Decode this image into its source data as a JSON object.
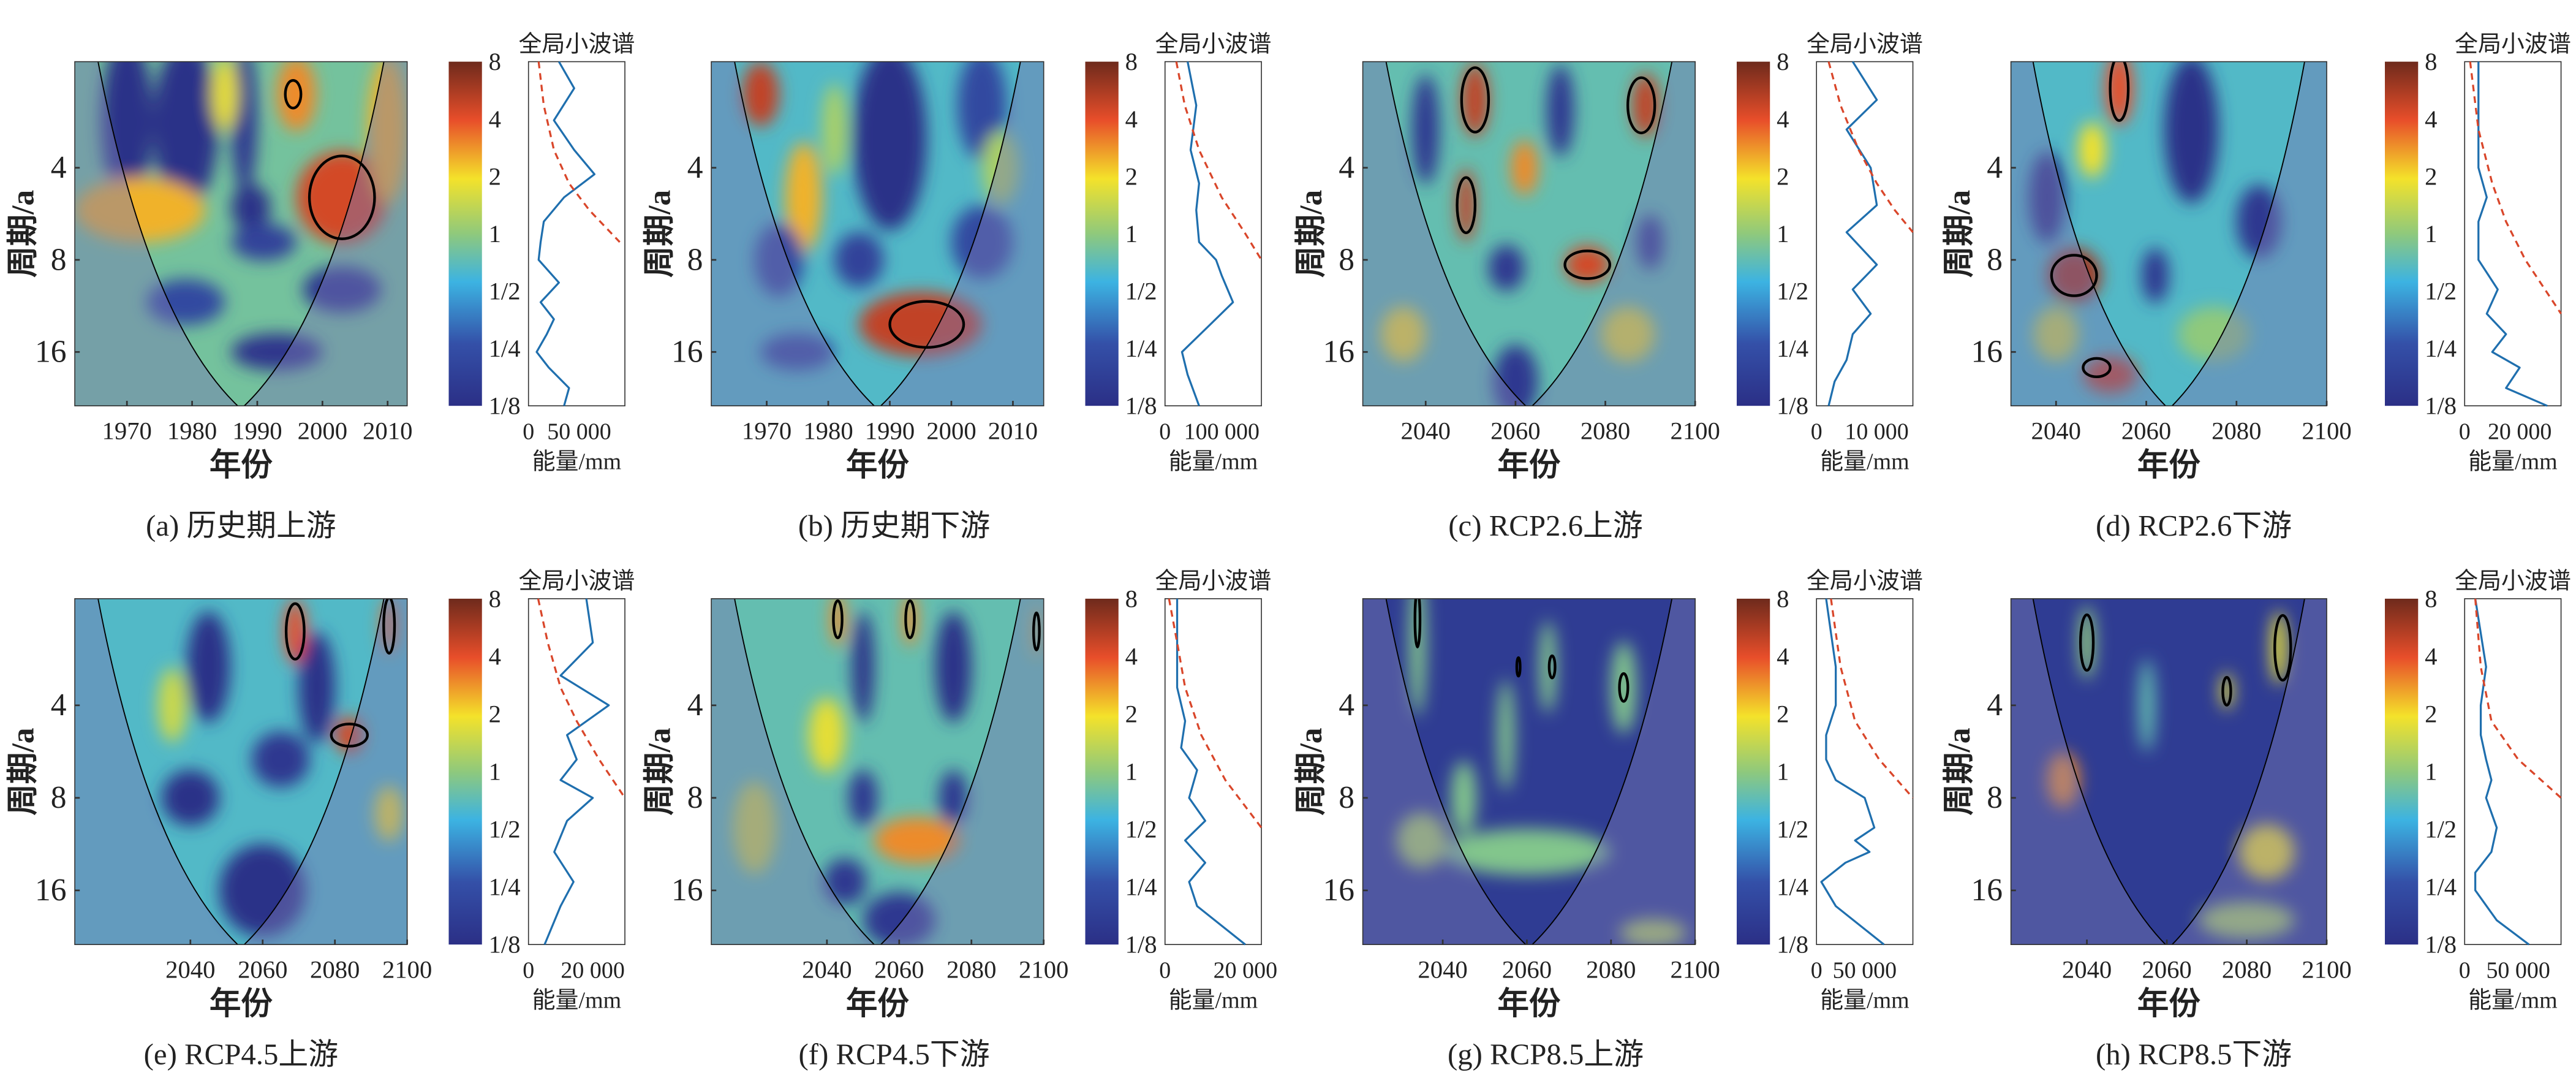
{
  "common": {
    "ylabel": "周期/a",
    "xlabel": "年份",
    "global_title": "全局小波谱",
    "energy_label": "能量/mm",
    "yticks": [
      4,
      8,
      16
    ],
    "ylim": [
      1.8,
      24
    ],
    "colorbar_ticks": [
      "8",
      "4",
      "2",
      "1",
      "1/2",
      "1/4",
      "1/8"
    ],
    "colorbar_values": [
      8,
      4,
      2,
      1,
      0.5,
      0.25,
      0.125
    ],
    "colors": {
      "contour": "#000000",
      "coi": "#000000",
      "global": "#1f6fae",
      "significance": "#d9462a"
    }
  },
  "chart_data": [
    {
      "id": "a",
      "type": "heatmap",
      "caption": "(a) 历史期上游",
      "xlim": [
        1962,
        2013
      ],
      "xticks": [
        1970,
        1980,
        1990,
        2000,
        2010
      ],
      "base_power": 0.8,
      "spots": [
        [
          1970,
          2.8,
          0.13,
          4,
          0.9
        ],
        [
          1979,
          2.9,
          0.13,
          5,
          0.9
        ],
        [
          1988,
          2.8,
          0.15,
          2,
          0.8
        ],
        [
          1972,
          5.5,
          2.5,
          10,
          0.35
        ],
        [
          2003,
          5,
          4.5,
          7,
          0.5
        ],
        [
          1996,
          2.3,
          3,
          3,
          0.4
        ],
        [
          2010,
          3,
          2.5,
          3,
          0.8
        ],
        [
          1989,
          5.4,
          0.13,
          3,
          0.25
        ],
        [
          1991,
          7,
          0.18,
          5,
          0.2
        ],
        [
          2003,
          10,
          0.15,
          6,
          0.25
        ],
        [
          1979,
          11,
          0.2,
          6,
          0.25
        ],
        [
          1993,
          16,
          0.14,
          7,
          0.2
        ],
        [
          1985,
          2.3,
          1.8,
          2,
          0.4
        ]
      ],
      "contours": [
        [
          1995.5,
          2.3,
          1.2,
          0.15
        ],
        [
          2003,
          5,
          5,
          0.45
        ]
      ],
      "global": {
        "periods": [
          1.8,
          2.2,
          2.8,
          3.5,
          4.2,
          5,
          6,
          7,
          8,
          9.5,
          11,
          12.5,
          14,
          16,
          18,
          21,
          24
        ],
        "energy": [
          30000,
          45000,
          25000,
          45000,
          65000,
          35000,
          15000,
          12000,
          10000,
          30000,
          12000,
          25000,
          18000,
          8000,
          20000,
          40000,
          35000
        ],
        "sig_periods": [
          1.8,
          2.5,
          3.5,
          4.5,
          5.5,
          7
        ],
        "sig_energy": [
          10000,
          15000,
          25000,
          40000,
          60000,
          90000
        ],
        "xmax": 95000,
        "xticks": [
          0,
          50000
        ],
        "xtick_labels": [
          "0",
          "50 000"
        ]
      }
    },
    {
      "id": "b",
      "type": "heatmap",
      "caption": "(b) 历史期下游",
      "xlim": [
        1961,
        2015
      ],
      "xticks": [
        1970,
        1980,
        1990,
        2000,
        2010
      ],
      "base_power": 0.6,
      "spots": [
        [
          1969,
          2.3,
          5,
          3,
          0.35
        ],
        [
          1990,
          3.2,
          0.13,
          6,
          1
        ],
        [
          1976,
          5,
          2.5,
          3,
          0.6
        ],
        [
          1981,
          3,
          1.2,
          2,
          0.5
        ],
        [
          1995,
          13,
          5,
          10,
          0.35
        ],
        [
          2005,
          2.5,
          0.2,
          4,
          0.6
        ],
        [
          1972,
          8,
          0.2,
          4,
          0.4
        ],
        [
          1985,
          8,
          0.18,
          4,
          0.3
        ],
        [
          2005,
          7,
          0.2,
          5,
          0.4
        ],
        [
          1975,
          16,
          0.2,
          6,
          0.2
        ],
        [
          2008,
          4,
          1.2,
          3,
          0.4
        ]
      ],
      "contours": [
        [
          1996,
          13,
          6,
          0.25
        ]
      ],
      "global": {
        "periods": [
          1.8,
          2.5,
          3.5,
          4.5,
          5.5,
          7,
          8,
          9,
          11,
          13,
          16,
          19,
          24
        ],
        "energy": [
          40000,
          55000,
          45000,
          60000,
          55000,
          60000,
          90000,
          100000,
          120000,
          80000,
          30000,
          40000,
          60000
        ],
        "sig_periods": [
          1.8,
          2.5,
          3.5,
          5,
          6.5,
          8
        ],
        "sig_energy": [
          20000,
          35000,
          60000,
          100000,
          140000,
          170000
        ],
        "xmax": 170000,
        "xticks": [
          0,
          100000
        ],
        "xtick_labels": [
          "0",
          "100 000"
        ]
      }
    },
    {
      "id": "c",
      "type": "heatmap",
      "caption": "(c) RCP2.6上游",
      "xlim": [
        2026,
        2100
      ],
      "xticks": [
        2040,
        2060,
        2080,
        2100
      ],
      "base_power": 0.7,
      "spots": [
        [
          2051,
          2.4,
          5,
          3,
          0.4
        ],
        [
          2089,
          2.5,
          5,
          3,
          0.35
        ],
        [
          2049,
          5.3,
          5,
          2,
          0.4
        ],
        [
          2076,
          8.3,
          4.5,
          5,
          0.2
        ],
        [
          2062,
          4,
          3,
          3,
          0.3
        ],
        [
          2040,
          3,
          0.15,
          3,
          0.6
        ],
        [
          2070,
          2.6,
          0.15,
          3,
          0.5
        ],
        [
          2058,
          8.5,
          0.15,
          4,
          0.25
        ],
        [
          2090,
          7,
          0.15,
          3,
          0.3
        ],
        [
          2035,
          14,
          2,
          5,
          0.3
        ],
        [
          2085,
          14,
          1.8,
          6,
          0.3
        ],
        [
          2060,
          20,
          0.15,
          5,
          0.4
        ]
      ],
      "contours": [
        [
          2051,
          2.4,
          3,
          0.35
        ],
        [
          2088,
          2.5,
          3,
          0.3
        ],
        [
          2049,
          5.3,
          2,
          0.3
        ],
        [
          2076,
          8.3,
          5,
          0.15
        ]
      ],
      "global": {
        "periods": [
          1.8,
          2.4,
          3,
          4,
          5.3,
          6.5,
          8.3,
          10,
          12,
          14,
          17,
          20,
          24
        ],
        "energy": [
          6000,
          10000,
          5000,
          9000,
          10000,
          5000,
          10000,
          6000,
          9000,
          6000,
          5000,
          3000,
          2000
        ],
        "sig_periods": [
          1.8,
          2.5,
          3.5,
          4.5,
          5.5,
          6.5
        ],
        "sig_energy": [
          2000,
          4000,
          7000,
          10000,
          13000,
          16000
        ],
        "xmax": 16000,
        "xticks": [
          0,
          10000
        ],
        "xtick_labels": [
          "0",
          "10 000"
        ]
      }
    },
    {
      "id": "d",
      "type": "heatmap",
      "caption": "(d) RCP2.6下游",
      "xlim": [
        2030,
        2100
      ],
      "xticks": [
        2040,
        2060,
        2080,
        2100
      ],
      "base_power": 0.6,
      "spots": [
        [
          2044,
          9,
          6,
          6,
          0.3
        ],
        [
          2054,
          2.2,
          4,
          3,
          0.4
        ],
        [
          2052,
          19,
          5,
          6,
          0.2
        ],
        [
          2038,
          5,
          0.13,
          4,
          0.5
        ],
        [
          2070,
          3,
          0.13,
          6,
          0.8
        ],
        [
          2062,
          9,
          0.15,
          3,
          0.3
        ],
        [
          2085,
          6,
          0.15,
          5,
          0.4
        ],
        [
          2040,
          14,
          1.5,
          5,
          0.3
        ],
        [
          2075,
          14,
          1,
          8,
          0.3
        ],
        [
          2048,
          3.5,
          2,
          3,
          0.3
        ]
      ],
      "contours": [
        [
          2044,
          9,
          5,
          0.22
        ],
        [
          2054,
          2.2,
          2,
          0.35
        ],
        [
          2049,
          18,
          3,
          0.1
        ]
      ],
      "global": {
        "periods": [
          1.8,
          3,
          4,
          5,
          6,
          8,
          10,
          12,
          14,
          16,
          18,
          21,
          24
        ],
        "energy": [
          5000,
          5000,
          5000,
          8000,
          5000,
          5000,
          12000,
          8000,
          15000,
          10000,
          20000,
          15000,
          30000
        ],
        "sig_periods": [
          1.8,
          3,
          4.5,
          6,
          8,
          12
        ],
        "sig_energy": [
          2000,
          5000,
          10000,
          15000,
          22000,
          35000
        ],
        "xmax": 35000,
        "xticks": [
          0,
          20000
        ],
        "xtick_labels": [
          "0",
          "20 000"
        ]
      }
    },
    {
      "id": "e",
      "type": "heatmap",
      "caption": "(e) RCP4.5上游",
      "xlim": [
        2008,
        2100
      ],
      "xticks": [
        2040,
        2060,
        2080,
        2100
      ],
      "base_power": 0.6,
      "spots": [
        [
          2069,
          2.3,
          4,
          3,
          0.35
        ],
        [
          2084,
          5,
          4.5,
          4,
          0.2
        ],
        [
          2095,
          2.2,
          3.5,
          2,
          0.3
        ],
        [
          2045,
          3,
          0.13,
          6,
          0.6
        ],
        [
          2075,
          3.5,
          0.13,
          5,
          0.6
        ],
        [
          2040,
          8,
          0.13,
          8,
          0.3
        ],
        [
          2065,
          6,
          0.15,
          8,
          0.3
        ],
        [
          2095,
          9,
          2,
          4,
          0.3
        ],
        [
          2060,
          16,
          0.13,
          12,
          0.5
        ],
        [
          2035,
          4,
          1.5,
          4,
          0.4
        ]
      ],
      "contours": [
        [
          2069,
          2.3,
          2.5,
          0.3
        ],
        [
          2084,
          5,
          5,
          0.12
        ],
        [
          2095,
          2.2,
          1.5,
          0.3
        ]
      ],
      "global": {
        "periods": [
          1.8,
          2.5,
          3.2,
          4,
          5,
          6,
          7,
          8,
          9.5,
          12,
          15,
          18,
          24
        ],
        "energy": [
          18000,
          20000,
          10000,
          25000,
          12000,
          15000,
          10000,
          20000,
          12000,
          8000,
          14000,
          10000,
          5000
        ],
        "sig_periods": [
          1.8,
          2.5,
          3.5,
          4.5,
          6,
          8
        ],
        "sig_energy": [
          3000,
          6000,
          10000,
          15000,
          22000,
          30000
        ],
        "xmax": 30000,
        "xticks": [
          0,
          20000
        ],
        "xtick_labels": [
          "0",
          "20 000"
        ]
      }
    },
    {
      "id": "f",
      "type": "heatmap",
      "caption": "(f) RCP4.5下游",
      "xlim": [
        2008,
        2100
      ],
      "xticks": [
        2040,
        2060,
        2080,
        2100
      ],
      "base_power": 0.7,
      "spots": [
        [
          2043,
          2.1,
          3,
          2,
          0.3
        ],
        [
          2063,
          2.1,
          3,
          2,
          0.3
        ],
        [
          2098,
          2.3,
          2.5,
          1,
          0.3
        ],
        [
          2040,
          5,
          1.8,
          5,
          0.4
        ],
        [
          2065,
          11,
          3,
          12,
          0.25
        ],
        [
          2050,
          3,
          0.13,
          3,
          0.6
        ],
        [
          2075,
          3,
          0.13,
          5,
          0.6
        ],
        [
          2050,
          8,
          0.15,
          4,
          0.3
        ],
        [
          2075,
          8,
          0.15,
          4,
          0.3
        ],
        [
          2045,
          15,
          0.15,
          6,
          0.25
        ],
        [
          2060,
          20,
          0.15,
          10,
          0.3
        ],
        [
          2020,
          10,
          1.5,
          6,
          0.5
        ]
      ],
      "contours": [
        [
          2043,
          2.1,
          1.2,
          0.2
        ],
        [
          2063,
          2.1,
          1.2,
          0.2
        ],
        [
          2098,
          2.3,
          0.8,
          0.2
        ]
      ],
      "global": {
        "periods": [
          1.8,
          2.5,
          3.5,
          4.5,
          5.5,
          6.5,
          8,
          9.5,
          11,
          13,
          15,
          18,
          24
        ],
        "energy": [
          3000,
          3000,
          3000,
          5000,
          4000,
          8000,
          6000,
          10000,
          5000,
          10000,
          6000,
          8000,
          20000
        ],
        "sig_periods": [
          1.8,
          2.5,
          3.5,
          5,
          7,
          10
        ],
        "sig_energy": [
          1000,
          3000,
          5000,
          9000,
          15000,
          24000
        ],
        "xmax": 24000,
        "xticks": [
          0,
          20000
        ],
        "xtick_labels": [
          "0",
          "20 000"
        ]
      }
    },
    {
      "id": "g",
      "type": "heatmap",
      "caption": "(g) RCP8.5上游",
      "xlim": [
        2021,
        2100
      ],
      "xticks": [
        2040,
        2060,
        2080,
        2100
      ],
      "base_power": 0.16,
      "spots": [
        [
          2034,
          2.5,
          0.9,
          2,
          0.8
        ],
        [
          2065,
          3,
          0.9,
          2,
          0.5
        ],
        [
          2083,
          3.5,
          0.9,
          3,
          0.5
        ],
        [
          2055,
          5,
          0.9,
          2,
          0.6
        ],
        [
          2045,
          8,
          0.9,
          3,
          0.4
        ],
        [
          2060,
          12,
          0.9,
          20,
          0.25
        ],
        [
          2035,
          11,
          1.2,
          6,
          0.3
        ],
        [
          2090,
          22,
          1.3,
          8,
          0.15
        ]
      ],
      "contours": [
        [
          2034,
          2.1,
          0.6,
          0.3
        ],
        [
          2066,
          3,
          0.7,
          0.12
        ],
        [
          2083,
          3.5,
          1,
          0.15
        ],
        [
          2058,
          3,
          0.4,
          0.1
        ]
      ],
      "global": {
        "periods": [
          1.8,
          3,
          4,
          5,
          6,
          7,
          8,
          10,
          11,
          12,
          13,
          15,
          18,
          24
        ],
        "energy": [
          10000,
          20000,
          20000,
          10000,
          10000,
          20000,
          50000,
          60000,
          40000,
          55000,
          30000,
          5000,
          20000,
          70000
        ],
        "sig_periods": [
          1.8,
          3,
          4.5,
          6,
          8
        ],
        "sig_energy": [
          15000,
          25000,
          40000,
          65000,
          100000
        ],
        "xmax": 100000,
        "xticks": [
          0,
          50000
        ],
        "xtick_labels": [
          "0",
          "50 000"
        ]
      }
    },
    {
      "id": "h",
      "type": "heatmap",
      "caption": "(h) RCP8.5下游",
      "xlim": [
        2021,
        2100
      ],
      "xticks": [
        2040,
        2060,
        2080,
        2100
      ],
      "base_power": 0.16,
      "spots": [
        [
          2040,
          2.5,
          1,
          2,
          0.4
        ],
        [
          2075,
          3.6,
          1.8,
          1.5,
          0.2
        ],
        [
          2088,
          2.6,
          1.8,
          2,
          0.4
        ],
        [
          2034,
          7,
          3,
          4,
          0.3
        ],
        [
          2085,
          12,
          2,
          7,
          0.3
        ],
        [
          2055,
          4,
          0.7,
          2,
          0.5
        ],
        [
          2080,
          20,
          1.2,
          12,
          0.2
        ]
      ],
      "contours": [
        [
          2040,
          2.5,
          1.6,
          0.3
        ],
        [
          2075,
          3.6,
          1,
          0.15
        ],
        [
          2089,
          2.6,
          2,
          0.35
        ]
      ],
      "global": {
        "periods": [
          1.8,
          3,
          4,
          5,
          6,
          7,
          8,
          10,
          12,
          14,
          16,
          20,
          24
        ],
        "energy": [
          10000,
          20000,
          15000,
          15000,
          20000,
          25000,
          20000,
          30000,
          25000,
          10000,
          10000,
          30000,
          60000
        ],
        "sig_periods": [
          1.8,
          3,
          4.5,
          6,
          8
        ],
        "sig_energy": [
          10000,
          15000,
          25000,
          50000,
          90000
        ],
        "xmax": 90000,
        "xticks": [
          0,
          50000
        ],
        "xtick_labels": [
          "0",
          "50 000"
        ]
      }
    }
  ]
}
